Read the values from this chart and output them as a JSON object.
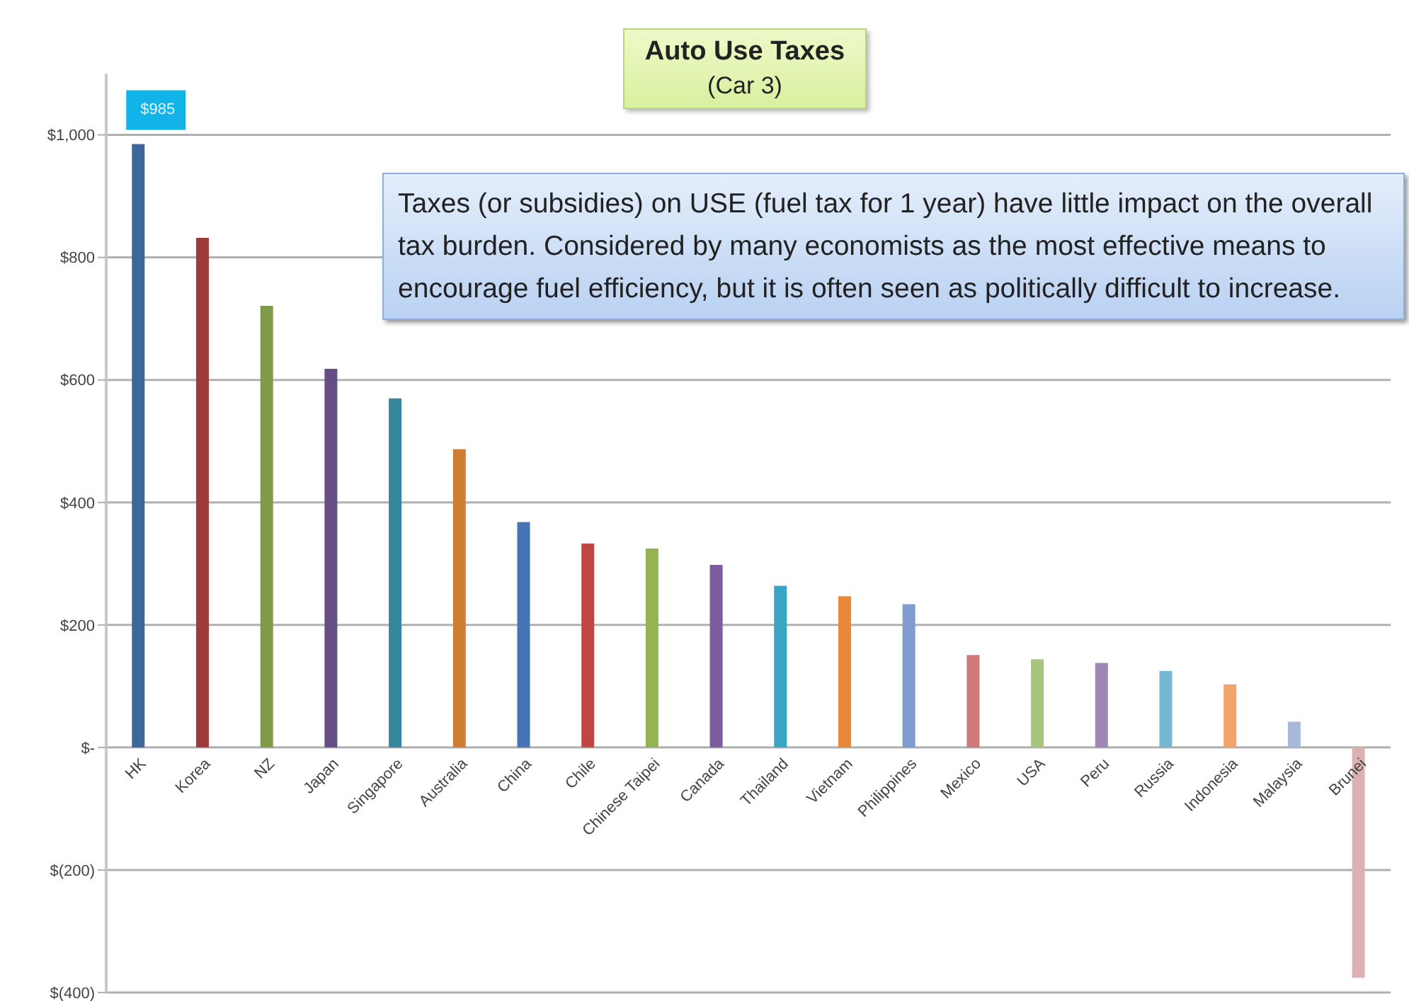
{
  "chart_data": {
    "type": "bar",
    "title": "Auto Use Taxes",
    "subtitle": "(Car 3)",
    "annotations": [
      "Taxes (or subsidies) on USE (fuel tax for 1 year) have little impact on the overall tax burden.  Considered by many economists as the most effective means to encourage fuel efficiency, but it is often seen as politically difficult to increase."
    ],
    "categories": [
      "HK",
      "Korea",
      "NZ",
      "Japan",
      "Singapore",
      "Australia",
      "China",
      "Chile",
      "Chinese Taipei",
      "Canada",
      "Thailand",
      "Vietnam",
      "Philippines",
      "Mexico",
      "USA",
      "Peru",
      "Russia",
      "Indonesia",
      "Malaysia",
      "Brunei"
    ],
    "values": [
      985,
      832,
      721,
      618,
      570,
      487,
      368,
      333,
      325,
      298,
      264,
      247,
      234,
      151,
      144,
      138,
      125,
      103,
      42,
      -376
    ],
    "value_labels": [
      "$985",
      null,
      null,
      null,
      null,
      null,
      null,
      null,
      null,
      null,
      null,
      null,
      null,
      null,
      null,
      null,
      null,
      null,
      null,
      null
    ],
    "colors": [
      "#3d6699",
      "#9e3a38",
      "#7f9a48",
      "#664d86",
      "#35879e",
      "#d07d34",
      "#4573b5",
      "#bf4645",
      "#94b454",
      "#7c5ba0",
      "#38a5c4",
      "#e8883b",
      "#7e9ccf",
      "#d17a7b",
      "#a8c47f",
      "#9d88b8",
      "#76b8d2",
      "#f5a36c",
      "#a9b9dc",
      "#ddb0b2"
    ],
    "ylim": [
      -400,
      1100
    ],
    "yticks": [
      {
        "value": -400,
        "label": "$(400)"
      },
      {
        "value": -200,
        "label": "$(200)"
      },
      {
        "value": 0,
        "label": "$-"
      },
      {
        "value": 200,
        "label": "$200"
      },
      {
        "value": 400,
        "label": "$400"
      },
      {
        "value": 600,
        "label": "$600"
      },
      {
        "value": 800,
        "label": "$800"
      },
      {
        "value": 1000,
        "label": "$1,000"
      }
    ],
    "grid": "y"
  }
}
